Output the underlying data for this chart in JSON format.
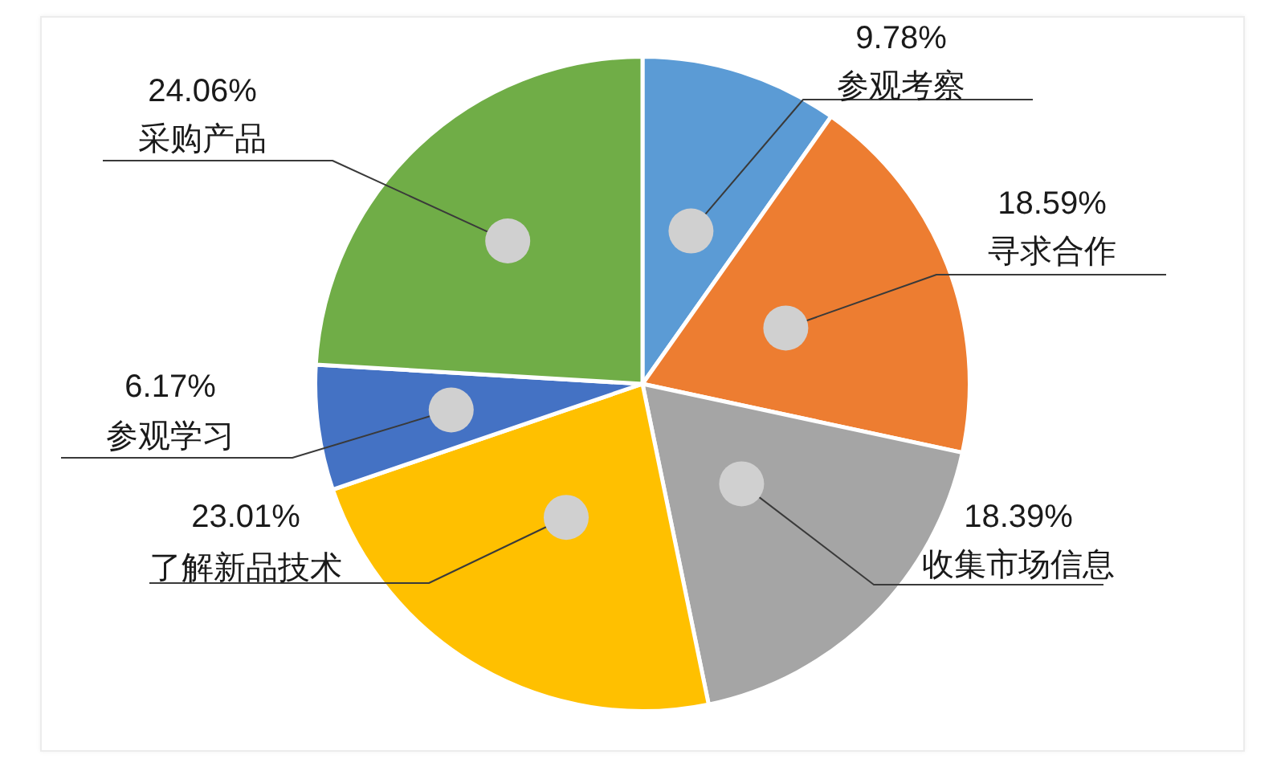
{
  "chart_data": {
    "type": "pie",
    "categories": [
      "参观考察",
      "寻求合作",
      "收集市场信息",
      "了解新品技术",
      "参观学习",
      "采购产品"
    ],
    "values": [
      9.78,
      18.59,
      18.39,
      23.01,
      6.17,
      24.06
    ],
    "colors": [
      "#5b9bd5",
      "#ed7d31",
      "#a5a5a5",
      "#ffc000",
      "#4472c4",
      "#70ad47"
    ],
    "value_labels": [
      "9.78%",
      "18.59%",
      "18.39%",
      "23.01%",
      "6.17%",
      "24.06%"
    ]
  }
}
